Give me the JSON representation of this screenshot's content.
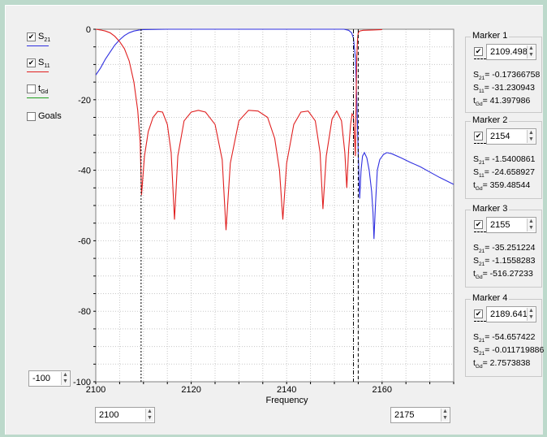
{
  "legend": {
    "items": [
      {
        "symbol": "S",
        "sub": "21",
        "color": "#3030e0",
        "checked": true
      },
      {
        "symbol": "S",
        "sub": "11",
        "color": "#e02020",
        "checked": true
      },
      {
        "symbol": "t",
        "sub": "Gd",
        "color": "#20a020",
        "checked": false
      },
      {
        "symbol": "Goals",
        "sub": "",
        "color": "",
        "checked": false
      }
    ]
  },
  "controls": {
    "ymin_value": "-100",
    "xmin_value": "2100",
    "xmax_value": "2175"
  },
  "markers": [
    {
      "title": "Marker 1",
      "value": "2109.4989",
      "readouts": [
        {
          "s": "S",
          "sub": "21",
          "text": " -0.17366758"
        },
        {
          "s": "S",
          "sub": "11",
          "text": " -31.230943"
        },
        {
          "s": "t",
          "sub": "Gd",
          "text": " 41.397986"
        }
      ]
    },
    {
      "title": "Marker 2",
      "value": "2154",
      "readouts": [
        {
          "s": "S",
          "sub": "21",
          "text": " -1.5400861"
        },
        {
          "s": "S",
          "sub": "11",
          "text": " -24.658927"
        },
        {
          "s": "t",
          "sub": "Gd",
          "text": " 359.48544"
        }
      ]
    },
    {
      "title": "Marker 3",
      "value": "2155",
      "readouts": [
        {
          "s": "S",
          "sub": "21",
          "text": " -35.251224"
        },
        {
          "s": "S",
          "sub": "21",
          "text": " -1.1558283"
        },
        {
          "s": "t",
          "sub": "Gd",
          "text": " -516.27233"
        }
      ]
    },
    {
      "title": "Marker 4",
      "value": "2189.6411",
      "readouts": [
        {
          "s": "S",
          "sub": "21",
          "text": " -54.657422"
        },
        {
          "s": "S",
          "sub": "21",
          "text": " -0.011719886"
        },
        {
          "s": "t",
          "sub": "Gd",
          "text": " 2.7573838"
        }
      ]
    }
  ],
  "chart_data": {
    "type": "line",
    "xlabel": "Frequency",
    "ylabel": "",
    "xlim": [
      2100,
      2175
    ],
    "ylim": [
      -100,
      0
    ],
    "x_ticks": [
      2100,
      2120,
      2140,
      2160
    ],
    "y_ticks": [
      0,
      -20,
      -40,
      -60,
      -80,
      -100
    ],
    "grid": true,
    "marker_x": [
      2109.5,
      2154,
      2155
    ],
    "series": [
      {
        "name": "S21",
        "color": "#3030e0",
        "points": [
          [
            2100,
            -13
          ],
          [
            2101,
            -11
          ],
          [
            2102,
            -8.5
          ],
          [
            2103,
            -6.5
          ],
          [
            2104,
            -4.5
          ],
          [
            2105,
            -3
          ],
          [
            2106,
            -1.8
          ],
          [
            2107,
            -1
          ],
          [
            2108,
            -0.5
          ],
          [
            2109,
            -0.25
          ],
          [
            2110,
            -0.1
          ],
          [
            2115,
            0
          ],
          [
            2130,
            0
          ],
          [
            2145,
            0
          ],
          [
            2152,
            0
          ],
          [
            2153,
            -0.3
          ],
          [
            2153.6,
            -1
          ],
          [
            2154,
            -2.5
          ],
          [
            2154.4,
            -8
          ],
          [
            2154.7,
            -20
          ],
          [
            2155,
            -35
          ],
          [
            2155.3,
            -48
          ],
          [
            2155.6,
            -40
          ],
          [
            2155.9,
            -36
          ],
          [
            2156.3,
            -35
          ],
          [
            2156.8,
            -36.5
          ],
          [
            2157.3,
            -40
          ],
          [
            2157.8,
            -46
          ],
          [
            2158.1,
            -52
          ],
          [
            2158.3,
            -59.5
          ],
          [
            2158.6,
            -50
          ],
          [
            2159,
            -40
          ],
          [
            2159.5,
            -37
          ],
          [
            2160.3,
            -35.5
          ],
          [
            2161,
            -35
          ],
          [
            2162,
            -35.3
          ],
          [
            2164,
            -36.5
          ],
          [
            2166,
            -37.8
          ],
          [
            2168,
            -39
          ],
          [
            2170,
            -40.5
          ],
          [
            2172,
            -42
          ],
          [
            2175,
            -44
          ]
        ]
      },
      {
        "name": "S11",
        "color": "#e02020",
        "points": [
          [
            2100,
            0
          ],
          [
            2101,
            -0.2
          ],
          [
            2102,
            -0.5
          ],
          [
            2103,
            -1
          ],
          [
            2104,
            -2
          ],
          [
            2105,
            -3.5
          ],
          [
            2106,
            -5.5
          ],
          [
            2107,
            -9
          ],
          [
            2108,
            -15
          ],
          [
            2108.8,
            -23
          ],
          [
            2109.3,
            -32
          ],
          [
            2109.6,
            -47
          ],
          [
            2110.2,
            -36
          ],
          [
            2111,
            -29
          ],
          [
            2112,
            -25
          ],
          [
            2113,
            -23.3
          ],
          [
            2114,
            -23.5
          ],
          [
            2115,
            -27
          ],
          [
            2115.8,
            -35
          ],
          [
            2116.5,
            -54
          ],
          [
            2117.2,
            -36
          ],
          [
            2118.5,
            -26
          ],
          [
            2120,
            -23.5
          ],
          [
            2121.5,
            -23
          ],
          [
            2123,
            -23.5
          ],
          [
            2125,
            -27
          ],
          [
            2126.5,
            -37
          ],
          [
            2127.3,
            -57
          ],
          [
            2128.2,
            -38
          ],
          [
            2130,
            -26
          ],
          [
            2132,
            -23
          ],
          [
            2134,
            -23.2
          ],
          [
            2136,
            -25
          ],
          [
            2137.5,
            -31
          ],
          [
            2138.5,
            -40
          ],
          [
            2139.2,
            -54
          ],
          [
            2140,
            -38
          ],
          [
            2141.5,
            -27
          ],
          [
            2143,
            -23.5
          ],
          [
            2144.5,
            -23.2
          ],
          [
            2146,
            -26
          ],
          [
            2147,
            -35
          ],
          [
            2147.6,
            -51
          ],
          [
            2148.3,
            -36
          ],
          [
            2149.5,
            -25.5
          ],
          [
            2150.5,
            -23.2
          ],
          [
            2151.5,
            -26
          ],
          [
            2152.2,
            -35
          ],
          [
            2152.6,
            -45
          ],
          [
            2153,
            -34
          ],
          [
            2153.4,
            -27
          ],
          [
            2153.7,
            -24
          ],
          [
            2154,
            -24.6
          ],
          [
            2154.2,
            -30
          ],
          [
            2154.4,
            -36
          ],
          [
            2154.55,
            -20
          ],
          [
            2154.7,
            -8
          ],
          [
            2154.85,
            -3
          ],
          [
            2155,
            -1
          ],
          [
            2155.3,
            -0.5
          ],
          [
            2156,
            -0.3
          ],
          [
            2158,
            -0.2
          ],
          [
            2160,
            -0.1
          ]
        ]
      }
    ]
  }
}
